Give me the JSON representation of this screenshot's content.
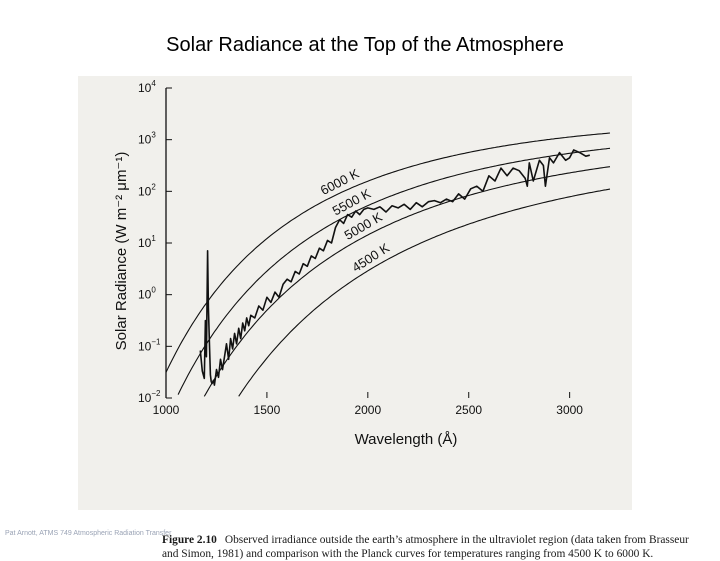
{
  "slide": {
    "title": "Solar Radiance at the Top of the Atmosphere",
    "footer": "Pat Arnott, ATMS 749 Atmospheric Radiation Transfer"
  },
  "caption": {
    "label": "Figure 2.10",
    "text": "Observed irradiance outside the earth’s atmosphere in the ultraviolet region (data taken from Brasseur and Simon, 1981) and comparison with the Planck curves for temperatures ranging from 4500 K to 6000 K."
  },
  "chart_data": {
    "type": "line",
    "title": "",
    "xlabel": "Wavelength (Å)",
    "ylabel": "Solar Radiance (W m⁻² μm⁻¹)",
    "xlim": [
      1000,
      3200
    ],
    "ylim_log10": [
      -2,
      4
    ],
    "x_ticks": [
      1000,
      1500,
      2000,
      2500,
      3000
    ],
    "y_ticks": [
      {
        "base": "10",
        "exp": "4"
      },
      {
        "base": "10",
        "exp": "3"
      },
      {
        "base": "10",
        "exp": "2"
      },
      {
        "base": "10",
        "exp": "1"
      },
      {
        "base": "10",
        "exp": "0"
      },
      {
        "base": "10",
        "exp": "−1"
      },
      {
        "base": "10",
        "exp": "−2"
      }
    ],
    "y_tick_exponents": [
      4,
      3,
      2,
      1,
      0,
      -1,
      -2
    ],
    "grid": false,
    "planck_curves": [
      {
        "label": "6000 K",
        "temperature": 6000
      },
      {
        "label": "5500 K",
        "temperature": 5500
      },
      {
        "label": "5000 K",
        "temperature": 5000
      },
      {
        "label": "4500 K",
        "temperature": 4500
      }
    ],
    "observed": {
      "name": "Observed irradiance",
      "x": [
        1170,
        1180,
        1190,
        1195,
        1200,
        1206,
        1210,
        1216,
        1220,
        1224,
        1228,
        1235,
        1240,
        1250,
        1260,
        1270,
        1280,
        1290,
        1300,
        1310,
        1320,
        1330,
        1340,
        1350,
        1360,
        1370,
        1380,
        1390,
        1400,
        1410,
        1420,
        1440,
        1460,
        1480,
        1500,
        1520,
        1540,
        1560,
        1580,
        1600,
        1620,
        1640,
        1660,
        1680,
        1700,
        1720,
        1740,
        1760,
        1780,
        1800,
        1820,
        1840,
        1860,
        1880,
        1900,
        1920,
        1940,
        1960,
        1980,
        2000,
        2030,
        2060,
        2090,
        2120,
        2150,
        2180,
        2210,
        2240,
        2270,
        2300,
        2330,
        2360,
        2390,
        2420,
        2450,
        2480,
        2510,
        2540,
        2570,
        2600,
        2630,
        2660,
        2690,
        2720,
        2750,
        2780,
        2790,
        2800,
        2820,
        2850,
        2870,
        2880,
        2900,
        2920,
        2950,
        2980,
        3000,
        3020,
        3050,
        3080,
        3100
      ],
      "log10_y": [
        -1.08,
        -1.48,
        -1.62,
        -0.5,
        -1.2,
        0.85,
        -0.25,
        -1.05,
        -1.55,
        -1.68,
        -1.72,
        -1.66,
        -1.75,
        -1.45,
        -1.6,
        -1.25,
        -1.45,
        -1.2,
        -0.95,
        -1.25,
        -0.85,
        -1.05,
        -0.75,
        -0.95,
        -0.65,
        -0.85,
        -0.55,
        -0.7,
        -0.45,
        -0.6,
        -0.4,
        -0.45,
        -0.22,
        -0.3,
        -0.05,
        -0.15,
        0.05,
        -0.05,
        0.2,
        0.3,
        0.25,
        0.45,
        0.4,
        0.6,
        0.55,
        0.75,
        0.7,
        0.9,
        0.85,
        1.05,
        1.0,
        1.3,
        1.45,
        1.38,
        1.55,
        1.5,
        1.62,
        1.55,
        1.65,
        1.68,
        1.65,
        1.7,
        1.6,
        1.72,
        1.68,
        1.75,
        1.65,
        1.78,
        1.7,
        1.8,
        1.82,
        1.78,
        1.85,
        1.8,
        1.95,
        1.85,
        2.05,
        2.1,
        2.0,
        2.3,
        2.2,
        2.45,
        2.3,
        2.45,
        2.4,
        2.25,
        2.1,
        2.55,
        2.2,
        2.6,
        2.5,
        2.1,
        2.65,
        2.55,
        2.75,
        2.6,
        2.65,
        2.8,
        2.75,
        2.68,
        2.7
      ]
    }
  }
}
